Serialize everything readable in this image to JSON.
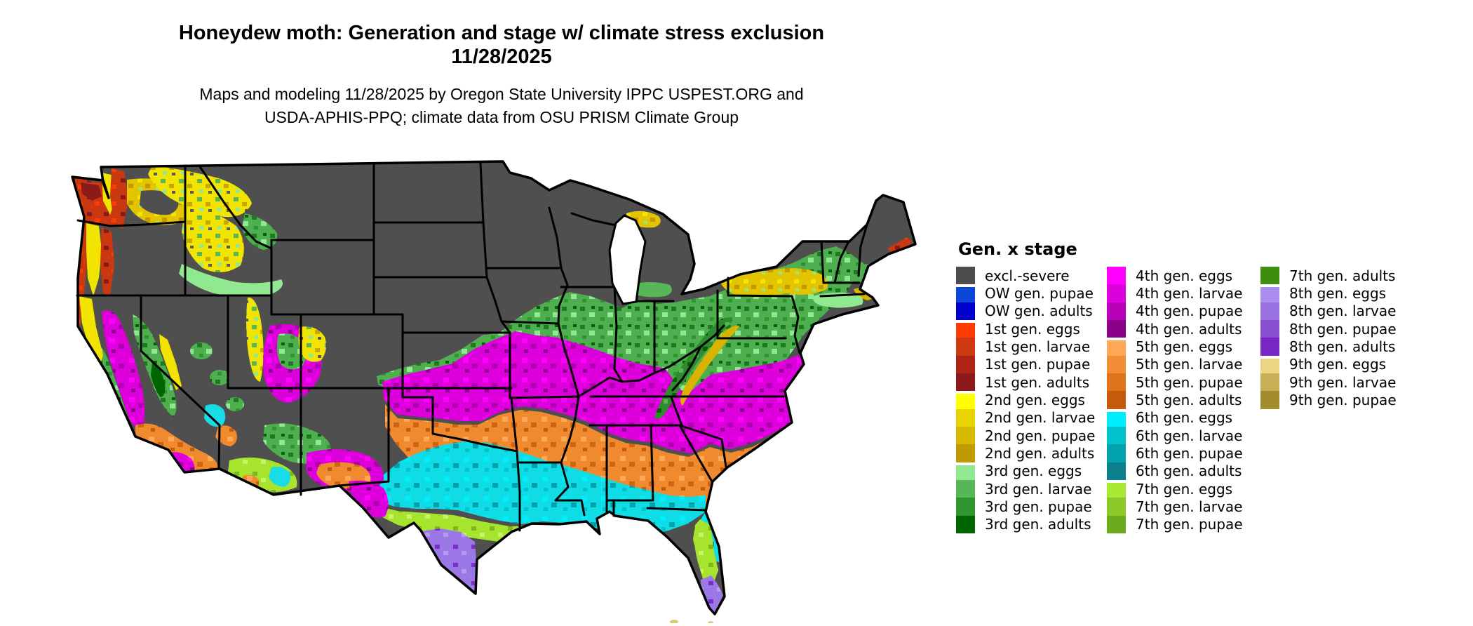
{
  "title": {
    "line1": "Honeydew moth: Generation and stage w/ climate stress exclusion",
    "line2": "11/28/2025"
  },
  "subtitle": {
    "line1": "Maps and modeling 11/28/2025 by Oregon State University IPPC USPEST.ORG and",
    "line2": "USDA-APHIS-PPQ; climate data from OSU PRISM Climate Group"
  },
  "legend": {
    "title": "Gen. x stage",
    "columns": [
      {
        "items": [
          {
            "label": "excl.-severe",
            "color": "#4d4d4d"
          },
          {
            "label": "OW gen. pupae",
            "color": "#0c46d8",
            "cls": "gap"
          },
          {
            "label": "OW gen. adults",
            "color": "#0000cd"
          },
          {
            "label": "1st gen. eggs",
            "color": "#fe3b00",
            "cls": "gap"
          },
          {
            "label": "1st gen. larvae",
            "color": "#cd3910"
          },
          {
            "label": "1st gen. pupae",
            "color": "#b02418"
          },
          {
            "label": "1st gen. adults",
            "color": "#8c1a1a"
          },
          {
            "label": "2nd gen. eggs",
            "color": "#ffff00",
            "cls": "gap"
          },
          {
            "label": "2nd gen. larvae",
            "color": "#e8d400"
          },
          {
            "label": "2nd gen. pupae",
            "color": "#d6ba00"
          },
          {
            "label": "2nd gen. adults",
            "color": "#c09a00"
          },
          {
            "label": "3rd gen. eggs",
            "color": "#90e890",
            "cls": "gap"
          },
          {
            "label": "3rd gen. larvae",
            "color": "#57b657"
          },
          {
            "label": "3rd gen. pupae",
            "color": "#2e962e"
          },
          {
            "label": "3rd gen. adults",
            "color": "#006400"
          }
        ]
      },
      {
        "items": [
          {
            "label": "4th gen. eggs",
            "color": "#ff00ff"
          },
          {
            "label": "4th gen. larvae",
            "color": "#dc00dc"
          },
          {
            "label": "4th gen. pupae",
            "color": "#b900b9"
          },
          {
            "label": "4th gen. adults",
            "color": "#8b008b"
          },
          {
            "label": "5th gen. eggs",
            "color": "#ffa857",
            "cls": "gap"
          },
          {
            "label": "5th gen. larvae",
            "color": "#f28e35"
          },
          {
            "label": "5th gen. pupae",
            "color": "#e0741c"
          },
          {
            "label": "5th gen. adults",
            "color": "#c55a0a"
          },
          {
            "label": "6th gen. eggs",
            "color": "#00eefc",
            "cls": "gap"
          },
          {
            "label": "6th gen. larvae",
            "color": "#00c2cc"
          },
          {
            "label": "6th gen. pupae",
            "color": "#00a2ac"
          },
          {
            "label": "6th gen. adults",
            "color": "#0b7f8a"
          },
          {
            "label": "7th gen. eggs",
            "color": "#a8e832",
            "cls": "gap"
          },
          {
            "label": "7th gen. larvae",
            "color": "#8cc828"
          },
          {
            "label": "7th gen. pupae",
            "color": "#6caa1e"
          }
        ]
      },
      {
        "items": [
          {
            "label": "7th gen. adults",
            "color": "#3e8c10"
          },
          {
            "label": "8th gen. eggs",
            "color": "#a98ef0",
            "cls": "gap"
          },
          {
            "label": "8th gen. larvae",
            "color": "#9870e0"
          },
          {
            "label": "8th gen. pupae",
            "color": "#8851d2"
          },
          {
            "label": "8th gen. adults",
            "color": "#7726c4"
          },
          {
            "label": "9th gen. eggs",
            "color": "#ead584",
            "cls": "gap"
          },
          {
            "label": "9th gen. larvae",
            "color": "#c8ae56"
          },
          {
            "label": "9th gen. pupae",
            "color": "#a38c2c"
          }
        ]
      }
    ]
  }
}
